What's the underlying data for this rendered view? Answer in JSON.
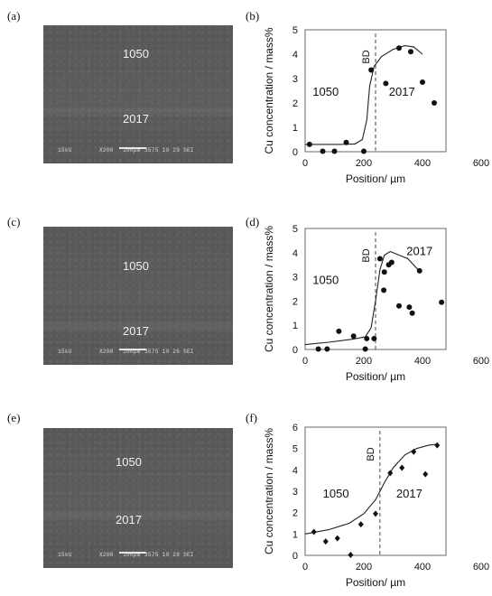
{
  "panels": {
    "a": "(a)",
    "b": "(b)",
    "c": "(c)",
    "d": "(d)",
    "e": "(e)",
    "f": "(f)"
  },
  "sem_images": [
    {
      "upper_label": "1050",
      "lower_label": "2017",
      "info": {
        "kv": "15kU",
        "mag": "X200",
        "scale": "100µm",
        "id": "3575 10 29 SEI"
      }
    },
    {
      "upper_label": "1050",
      "lower_label": "2017",
      "info": {
        "kv": "15kU",
        "mag": "X200",
        "scale": "100µm",
        "id": "3575 10 26 SEI"
      }
    },
    {
      "upper_label": "1050",
      "lower_label": "2017",
      "info": {
        "kv": "15kU",
        "mag": "X200",
        "scale": "100µm",
        "id": "3575 10 28 SEI"
      }
    }
  ],
  "chart_data": [
    {
      "type": "scatter",
      "panel": "(b)",
      "xlabel": "Position/ µm",
      "ylabel": "Cu concentration / mass%",
      "xlim": [
        0,
        600
      ],
      "ylim": [
        0,
        5
      ],
      "xticks": [
        "0",
        "200",
        "400",
        "600"
      ],
      "yticks": [
        "0",
        "1",
        "2",
        "3",
        "4",
        "5"
      ],
      "boundary_x": 240,
      "boundary_label": "BD",
      "annotations": [
        {
          "text": "1050",
          "x": 70,
          "y": 2.3
        },
        {
          "text": "2017",
          "x": 330,
          "y": 2.3
        }
      ],
      "marker": "circle",
      "points": [
        [
          15,
          0.3
        ],
        [
          60,
          0.02
        ],
        [
          100,
          0.02
        ],
        [
          140,
          0.38
        ],
        [
          200,
          0.02
        ],
        [
          225,
          3.35
        ],
        [
          275,
          2.8
        ],
        [
          320,
          4.25
        ],
        [
          360,
          4.1
        ],
        [
          400,
          2.85
        ],
        [
          440,
          2.0
        ]
      ],
      "fit_curve": [
        [
          0,
          0.3
        ],
        [
          60,
          0.3
        ],
        [
          120,
          0.3
        ],
        [
          170,
          0.32
        ],
        [
          195,
          0.5
        ],
        [
          210,
          1.3
        ],
        [
          220,
          2.7
        ],
        [
          235,
          3.5
        ],
        [
          260,
          3.9
        ],
        [
          300,
          4.2
        ],
        [
          340,
          4.35
        ],
        [
          370,
          4.3
        ],
        [
          400,
          4.0
        ]
      ]
    },
    {
      "type": "scatter",
      "panel": "(d)",
      "xlabel": "Position/ µm",
      "ylabel": "Cu concentration / mass%",
      "xlim": [
        0,
        600
      ],
      "ylim": [
        0,
        5
      ],
      "xticks": [
        "0",
        "200",
        "400",
        "600"
      ],
      "yticks": [
        "0",
        "1",
        "2",
        "3",
        "4",
        "5"
      ],
      "boundary_x": 240,
      "boundary_label": "BD",
      "annotations": [
        {
          "text": "1050",
          "x": 70,
          "y": 2.7
        },
        {
          "text": "2017",
          "x": 390,
          "y": 3.9
        }
      ],
      "marker": "circle",
      "points": [
        [
          45,
          0.02
        ],
        [
          75,
          0.02
        ],
        [
          115,
          0.75
        ],
        [
          165,
          0.55
        ],
        [
          205,
          0.02
        ],
        [
          210,
          0.45
        ],
        [
          235,
          0.45
        ],
        [
          255,
          3.75
        ],
        [
          270,
          3.2
        ],
        [
          268,
          2.45
        ],
        [
          285,
          3.5
        ],
        [
          295,
          3.6
        ],
        [
          320,
          1.8
        ],
        [
          355,
          1.75
        ],
        [
          365,
          1.5
        ],
        [
          390,
          3.25
        ],
        [
          465,
          1.95
        ]
      ],
      "fit_curve": [
        [
          0,
          0.2
        ],
        [
          80,
          0.3
        ],
        [
          160,
          0.42
        ],
        [
          205,
          0.52
        ],
        [
          225,
          0.9
        ],
        [
          240,
          2.0
        ],
        [
          255,
          3.3
        ],
        [
          270,
          3.9
        ],
        [
          290,
          4.05
        ],
        [
          320,
          3.9
        ],
        [
          350,
          3.75
        ],
        [
          385,
          3.3
        ]
      ]
    },
    {
      "type": "scatter",
      "panel": "(f)",
      "xlabel": "Position/ µm",
      "ylabel": "Cu concentration / mass%",
      "xlim": [
        0,
        600
      ],
      "ylim": [
        0,
        6
      ],
      "xticks": [
        "0",
        "200",
        "400",
        "600"
      ],
      "yticks": [
        "0",
        "1",
        "2",
        "3",
        "4",
        "5",
        "6"
      ],
      "boundary_x": 255,
      "boundary_label": "BD",
      "annotations": [
        {
          "text": "1050",
          "x": 105,
          "y": 2.7
        },
        {
          "text": "2017",
          "x": 355,
          "y": 2.7
        }
      ],
      "marker": "diamond",
      "points": [
        [
          30,
          1.1
        ],
        [
          70,
          0.65
        ],
        [
          110,
          0.8
        ],
        [
          155,
          0.02
        ],
        [
          190,
          1.45
        ],
        [
          240,
          1.95
        ],
        [
          290,
          3.85
        ],
        [
          330,
          4.1
        ],
        [
          370,
          4.85
        ],
        [
          410,
          3.8
        ],
        [
          450,
          5.15
        ]
      ],
      "fit_curve": [
        [
          0,
          1.0
        ],
        [
          80,
          1.2
        ],
        [
          150,
          1.5
        ],
        [
          200,
          1.95
        ],
        [
          240,
          2.6
        ],
        [
          270,
          3.4
        ],
        [
          300,
          4.1
        ],
        [
          340,
          4.7
        ],
        [
          380,
          5.0
        ],
        [
          420,
          5.15
        ],
        [
          450,
          5.2
        ]
      ]
    }
  ]
}
